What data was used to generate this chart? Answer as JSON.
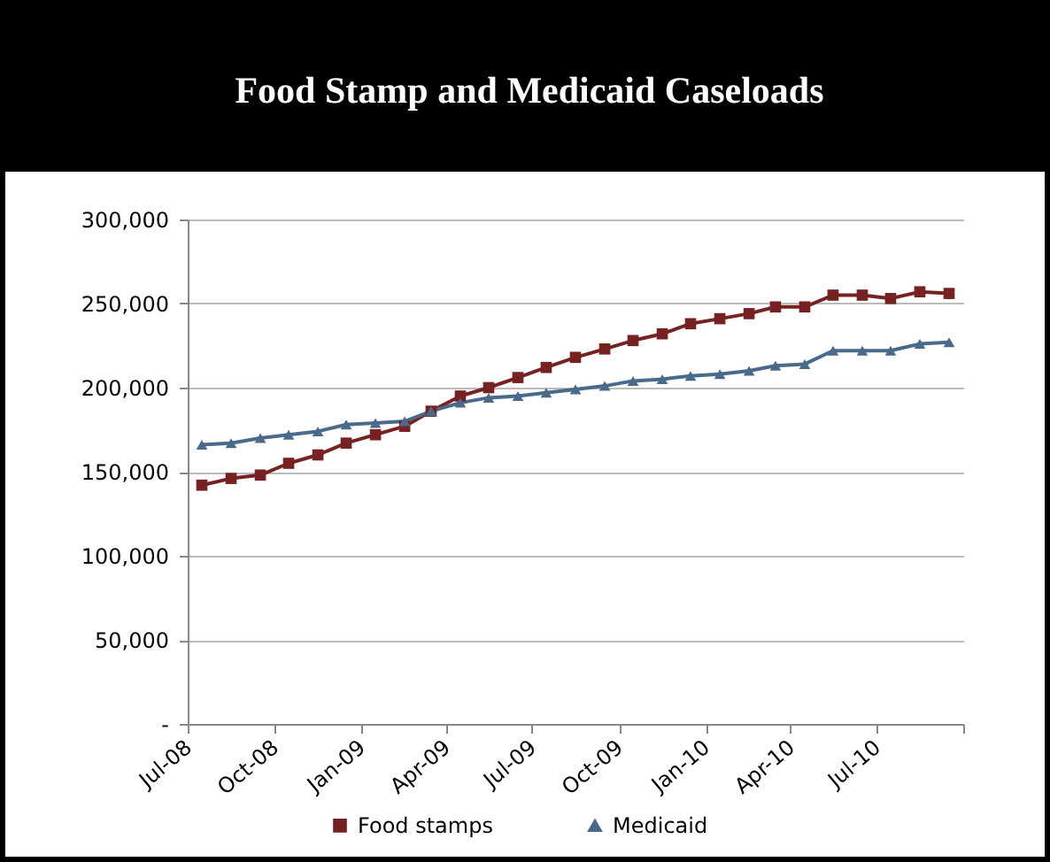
{
  "chart_data": {
    "type": "line",
    "title": "Food Stamp and Medicaid Caseloads",
    "x": [
      "2008-07-16",
      "2008-08-16",
      "2008-09-16",
      "2008-10-16",
      "2008-11-16",
      "2008-12-16",
      "2009-01-16",
      "2009-02-16",
      "2009-03-16",
      "2009-04-16",
      "2009-05-16",
      "2009-06-16",
      "2009-07-16",
      "2009-08-16",
      "2009-09-16",
      "2009-10-16",
      "2009-11-16",
      "2009-12-16",
      "2010-01-16",
      "2010-02-16",
      "2010-03-16",
      "2010-04-16",
      "2010-05-16",
      "2010-06-16",
      "2010-07-16",
      "2010-08-16",
      "2010-09-16"
    ],
    "series": [
      {
        "name": "Food stamps",
        "color": "#772222",
        "marker": "square",
        "values": [
          142000,
          146000,
          148000,
          155000,
          160000,
          167000,
          172000,
          177000,
          186000,
          195000,
          200000,
          206000,
          212000,
          218000,
          223000,
          228000,
          232000,
          238000,
          241000,
          244000,
          248000,
          248000,
          255000,
          255000,
          253000,
          257000,
          256000
        ]
      },
      {
        "name": "Medicaid",
        "color": "#4a6a8c",
        "marker": "triangle",
        "values": [
          166000,
          167000,
          170000,
          172000,
          174000,
          178000,
          179000,
          180000,
          186000,
          191000,
          194000,
          195000,
          197000,
          199000,
          201000,
          204000,
          205000,
          207000,
          208000,
          210000,
          213000,
          214000,
          222000,
          222000,
          222000,
          226000,
          227000
        ]
      }
    ],
    "xlim": [
      "2008-07-01",
      "2010-10-01"
    ],
    "xticks": [
      {
        "value": "2008-07-01",
        "label": "Jul-08"
      },
      {
        "value": "2008-10-01",
        "label": "Oct-08"
      },
      {
        "value": "2009-01-01",
        "label": "Jan-09"
      },
      {
        "value": "2009-04-01",
        "label": "Apr-09"
      },
      {
        "value": "2009-07-01",
        "label": "Jul-09"
      },
      {
        "value": "2009-10-01",
        "label": "Oct-09"
      },
      {
        "value": "2010-01-01",
        "label": "Jan-10"
      },
      {
        "value": "2010-04-01",
        "label": "Apr-10"
      },
      {
        "value": "2010-07-01",
        "label": "Jul-10"
      },
      {
        "value": "2010-10-01",
        "label": null
      }
    ],
    "ylim": [
      0,
      300000
    ],
    "yticks": [
      {
        "value": 0,
        "label": "-"
      },
      {
        "value": 50000,
        "label": "50,000"
      },
      {
        "value": 100000,
        "label": "100,000"
      },
      {
        "value": 150000,
        "label": "150,000"
      },
      {
        "value": 200000,
        "label": "200,000"
      },
      {
        "value": 250000,
        "label": "250,000"
      },
      {
        "value": 300000,
        "label": "300,000"
      }
    ],
    "grid": "y",
    "legend": "bottom"
  }
}
